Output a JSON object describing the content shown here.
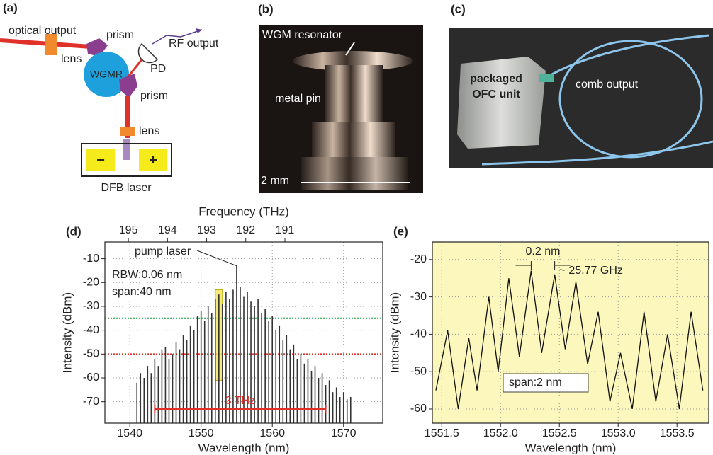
{
  "panels": {
    "a": {
      "label": "(a)",
      "texts": [
        "optical output",
        "lens",
        "prism",
        "WGMR",
        "RF output",
        "PD",
        "prism",
        "lens",
        "−",
        "+",
        "DFB laser"
      ]
    },
    "b": {
      "label": "(b)",
      "texts": [
        "WGM resonator",
        "metal pin",
        "2 mm"
      ]
    },
    "c": {
      "label": "(c)",
      "texts": [
        "packaged",
        "OFC unit",
        "comb output"
      ]
    }
  },
  "chart_data": [
    {
      "type": "stem",
      "panel_label": "(d)",
      "xlabel": "Wavelength (nm)",
      "ylabel": "Intensity (dBm)",
      "x2label": "Frequency (THz)",
      "xlim": [
        1536.5,
        1575.5
      ],
      "xticks": [
        1540,
        1550,
        1560,
        1570
      ],
      "ylim": [
        -79,
        -3
      ],
      "yticks": [
        -70,
        -60,
        -50,
        -40,
        -30,
        -20,
        -10
      ],
      "x2lim": [
        195.6,
        188.5
      ],
      "x2ticks": [
        195,
        194,
        193,
        192,
        191
      ],
      "grid": true,
      "x": [
        1541,
        1541.5,
        1542,
        1542.5,
        1543,
        1543.5,
        1544,
        1544.5,
        1545,
        1545.5,
        1546,
        1546.5,
        1547,
        1547.5,
        1548,
        1548.5,
        1549,
        1549.5,
        1550,
        1550.5,
        1551,
        1551.5,
        1552,
        1552.5,
        1553,
        1553.5,
        1554,
        1554.5,
        1555,
        1555.5,
        1556,
        1556.5,
        1557,
        1557.5,
        1558,
        1558.5,
        1559,
        1559.5,
        1560,
        1560.5,
        1561,
        1561.5,
        1562,
        1562.5,
        1563,
        1563.5,
        1564,
        1564.5,
        1565,
        1565.5,
        1566,
        1566.5,
        1567,
        1567.5,
        1568,
        1568.5,
        1569,
        1569.5,
        1570,
        1570.5,
        1571
      ],
      "series": [
        {
          "name": "spectrum",
          "color": "#333333",
          "values": [
            -62,
            -58,
            -60,
            -55,
            -58,
            -52,
            -55,
            -48,
            -47,
            -52,
            -50,
            -45,
            -48,
            -42,
            -44,
            -38,
            -40,
            -34,
            -32,
            -36,
            -30,
            -33,
            -27,
            -25,
            -29,
            -24,
            -27,
            -23,
            -13,
            -22,
            -26,
            -24,
            -28,
            -30,
            -27,
            -33,
            -31,
            -36,
            -34,
            -40,
            -38,
            -44,
            -42,
            -48,
            -46,
            -52,
            -50,
            -54,
            -52,
            -57,
            -55,
            -60,
            -58,
            -63,
            -61,
            -66,
            -64,
            -68,
            -66,
            -69,
            -68
          ]
        }
      ],
      "hlines": [
        {
          "value": -35,
          "color": "#1f9e3a"
        },
        {
          "value": -50,
          "color": "#e0302a"
        }
      ],
      "highlight": {
        "x": [
          1552,
          1553
        ],
        "y": [
          -61,
          -23
        ],
        "color": "#f2e34c"
      },
      "bracket": {
        "label": "3 THz",
        "x": [
          1543.5,
          1567.5
        ],
        "color": "#e0302a"
      },
      "annotations": [
        "pump laser",
        "RBW:0.06 nm",
        "span:40 nm"
      ]
    },
    {
      "type": "line",
      "panel_label": "(e)",
      "xlabel": "Wavelength (nm)",
      "ylabel": "Intensity (dBm)",
      "xlim": [
        1551.42,
        1553.77
      ],
      "xticks": [
        1551.5,
        {
          "value": 1552,
          "label": "1552.0"
        },
        1552.5,
        {
          "value": 1553,
          "label": "1553.0"
        },
        1553.5
      ],
      "ylim": [
        -63.8,
        -15.3
      ],
      "yticks": [
        -60,
        -50,
        -40,
        -30,
        -20
      ],
      "grid": true,
      "background": "#fbf7bd",
      "x": [
        1551.45,
        1551.55,
        1551.64,
        1551.73,
        1551.8,
        1551.9,
        1551.98,
        1552.07,
        1552.16,
        1552.26,
        1552.35,
        1552.46,
        1552.55,
        1552.64,
        1552.74,
        1552.83,
        1552.93,
        1553.02,
        1553.12,
        1553.22,
        1553.32,
        1553.42,
        1553.52,
        1553.62,
        1553.72
      ],
      "series": [
        {
          "name": "spectrum",
          "color": "#111111",
          "values": [
            -55,
            -39,
            -60,
            -41,
            -55,
            -30,
            -50,
            -25,
            -46,
            -23,
            -45,
            -24,
            -44,
            -26,
            -48,
            -34,
            -58,
            -45,
            -60,
            -34,
            -58,
            -40,
            -60,
            -34,
            -55
          ]
        }
      ],
      "annotations": [
        "0.2 nm",
        "~ 25.77 GHz",
        "span:2 nm"
      ]
    }
  ]
}
